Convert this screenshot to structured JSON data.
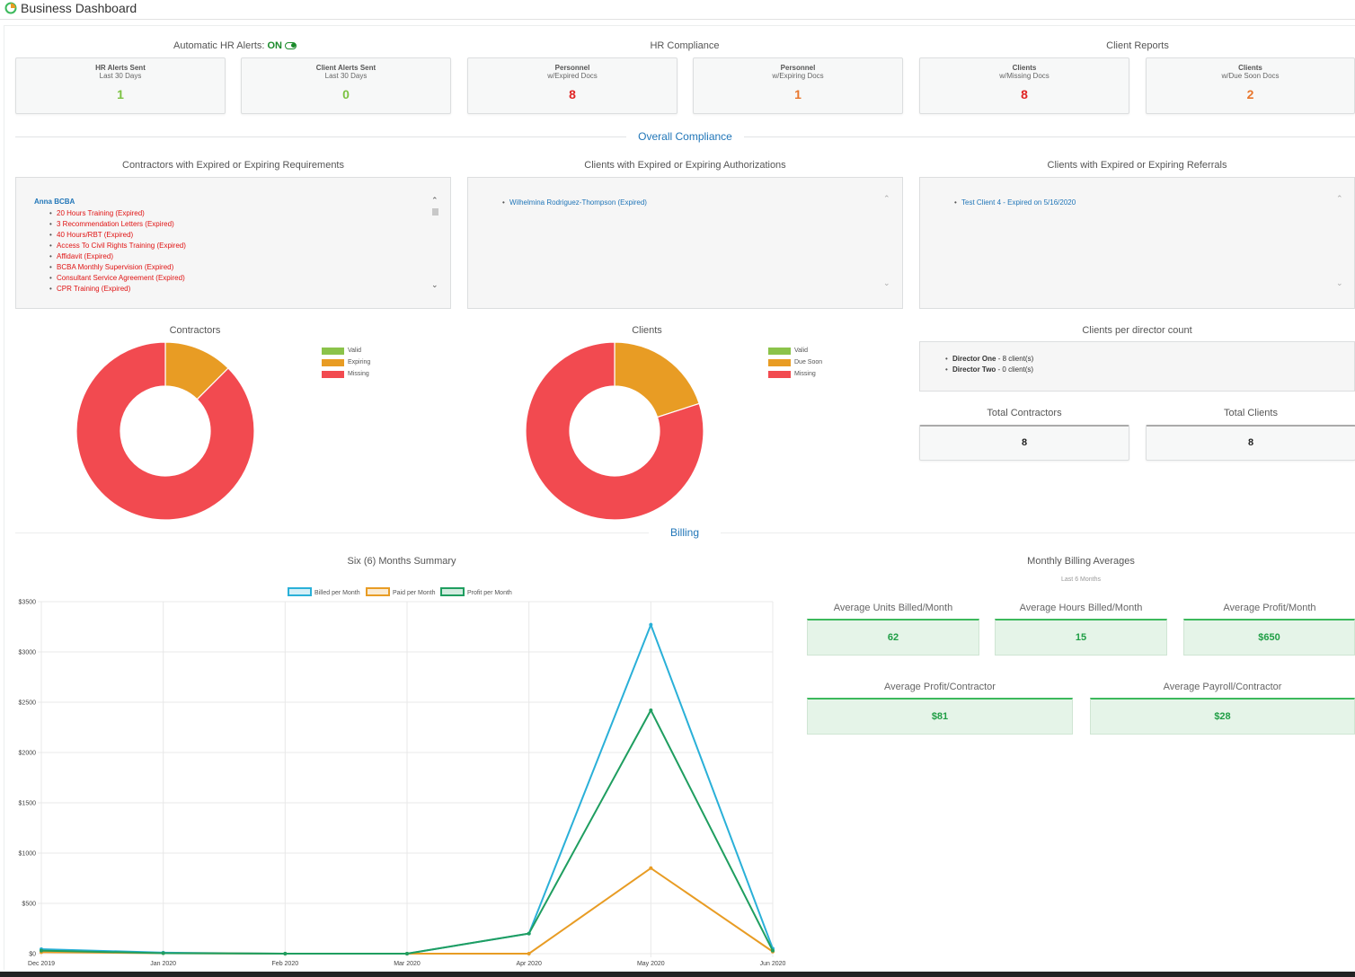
{
  "window": {
    "title": "Business Dashboard"
  },
  "top": {
    "hr_alerts_label": "Automatic HR Alerts:",
    "hr_alerts_state": "ON",
    "hr_compliance_label": "HR Compliance",
    "client_reports_label": "Client Reports",
    "cards": [
      {
        "line1": "HR Alerts Sent",
        "line2": "Last 30 Days",
        "value": "1",
        "color": "#7cc242"
      },
      {
        "line1": "Client Alerts Sent",
        "line2": "Last 30 Days",
        "value": "0",
        "color": "#7cc242"
      },
      {
        "line1": "Personnel",
        "line2": "w/Expired Docs",
        "value": "8",
        "color": "#e02424"
      },
      {
        "line1": "Personnel",
        "line2": "w/Expiring Docs",
        "value": "1",
        "color": "#e8762c"
      },
      {
        "line1": "Clients",
        "line2": "w/Missing Docs",
        "value": "8",
        "color": "#e02424"
      },
      {
        "line1": "Clients",
        "line2": "w/Due Soon Docs",
        "value": "2",
        "color": "#e8762c"
      }
    ]
  },
  "overall_compliance": {
    "title": "Overall Compliance",
    "contractors_header": "Contractors with Expired or Expiring Requirements",
    "contractor_name": "Anna BCBA",
    "contractor_items": [
      "20 Hours Training (Expired)",
      "3 Recommendation Letters (Expired)",
      "40 Hours/RBT (Expired)",
      "Access To Civil Rights Training (Expired)",
      "Affidavit (Expired)",
      "BCBA Monthly Supervision (Expired)",
      "Consultant Service Agreement (Expired)",
      "CPR Training (Expired)"
    ],
    "auth_header": "Clients with Expired or Expiring Authorizations",
    "auth_items": [
      "Wilhelmina Rodriguez-Thompson (Expired)"
    ],
    "ref_header": "Clients with Expired or Expiring Referrals",
    "ref_items": [
      "Test Client 4 - Expired on 5/16/2020"
    ]
  },
  "contractors_chart": {
    "title": "Contractors",
    "legend": [
      "Valid",
      "Expiring",
      "Missing"
    ],
    "values": [
      0,
      1,
      7
    ],
    "colors": [
      "#8bc34a",
      "#e89c24",
      "#f24a50"
    ]
  },
  "clients_chart": {
    "title": "Clients",
    "legend": [
      "Valid",
      "Due Soon",
      "Missing"
    ],
    "values": [
      0,
      2,
      8
    ],
    "colors": [
      "#8bc34a",
      "#e89c24",
      "#f24a50"
    ]
  },
  "directors": {
    "title": "Clients per director count",
    "items": [
      {
        "name": "Director One",
        "count": " - 8 client(s)"
      },
      {
        "name": "Director Two",
        "count": " - 0 client(s)"
      }
    ]
  },
  "totals": {
    "contractors_label": "Total Contractors",
    "contractors_value": "8",
    "clients_label": "Total Clients",
    "clients_value": "8"
  },
  "billing": {
    "title": "Billing",
    "summary_title": "Six (6) Months Summary",
    "averages_title": "Monthly Billing Averages",
    "averages_subtitle": "Last 6 Months",
    "avg_units_label": "Average Units Billed/Month",
    "avg_units_value": "62",
    "avg_hours_label": "Average Hours Billed/Month",
    "avg_hours_value": "15",
    "avg_profit_label": "Average Profit/Month",
    "avg_profit_value": "$650",
    "avg_profit_contractor_label": "Average Profit/Contractor",
    "avg_profit_contractor_value": "$81",
    "avg_payroll_contractor_label": "Average Payroll/Contractor",
    "avg_payroll_contractor_value": "$28"
  },
  "chart_data": {
    "type": "line",
    "title": "",
    "categories": [
      "Dec 2019",
      "Jan 2020",
      "Feb 2020",
      "Mar 2020",
      "Apr 2020",
      "May 2020",
      "Jun 2020"
    ],
    "ylim": [
      0,
      3500
    ],
    "yticks": [
      "$0",
      "$500",
      "$1000",
      "$1500",
      "$2000",
      "$2500",
      "$3000",
      "$3500"
    ],
    "grid": true,
    "legend_position": "top",
    "series": [
      {
        "name": "Billed per Month",
        "color": "#2ab0d8",
        "values": [
          45,
          10,
          0,
          0,
          200,
          3270,
          50
        ]
      },
      {
        "name": "Paid per Month",
        "color": "#e89c24",
        "values": [
          15,
          5,
          0,
          0,
          0,
          850,
          20
        ]
      },
      {
        "name": "Profit per Month",
        "color": "#1f9e60",
        "values": [
          30,
          5,
          0,
          0,
          200,
          2420,
          30
        ]
      }
    ]
  }
}
